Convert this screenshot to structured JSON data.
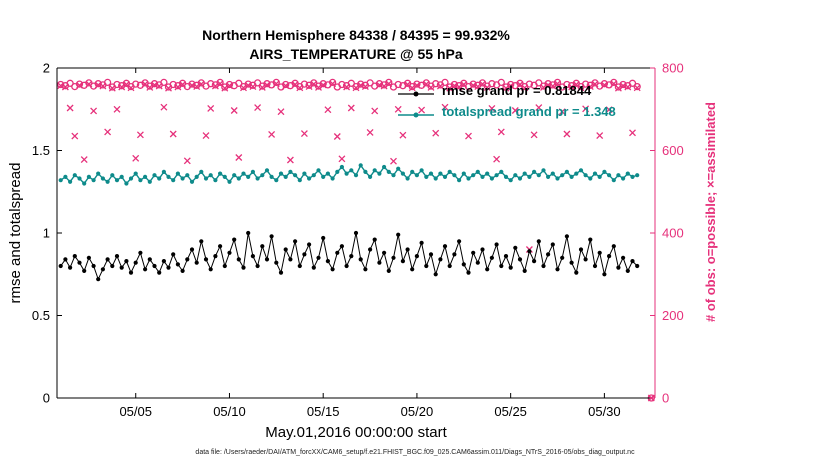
{
  "caption": "data file: /Users/raeder/DAI/ATM_forcXX/CAM6_setup/f.e21.FHIST_BGC.f09_025.CAM6assim.011/Diags_NTrS_2016-05/obs_diag_output.nc",
  "colors": {
    "pink": "#e6317b",
    "teal": "#0e8b8b",
    "black": "#000000"
  },
  "chart_data": {
    "type": "line+scatter",
    "title": "Northern Hemisphere 84338 / 84395 = 99.932%",
    "subtitle": "AIRS_TEMPERATURE @ 55 hPa",
    "xlabel": "May.01,2016 00:00:00 start",
    "ylabel_left": "rmse and totalspread",
    "ylabel_right": "# of obs: o=possible; ×=assimilated",
    "xlim": [
      0.8,
      32.7
    ],
    "ylim_left": [
      0,
      2
    ],
    "ylim_right": [
      0,
      800
    ],
    "grid": false,
    "legend_position": "top-center-inside",
    "x_ticks": [
      {
        "v": 5,
        "label": "05/05"
      },
      {
        "v": 10,
        "label": "05/10"
      },
      {
        "v": 15,
        "label": "05/15"
      },
      {
        "v": 20,
        "label": "05/20"
      },
      {
        "v": 25,
        "label": "05/25"
      },
      {
        "v": 30,
        "label": "05/30"
      }
    ],
    "y_ticks_left": [
      {
        "v": 0,
        "label": "0"
      },
      {
        "v": 0.5,
        "label": "0.5"
      },
      {
        "v": 1,
        "label": "1"
      },
      {
        "v": 1.5,
        "label": "1.5"
      },
      {
        "v": 2,
        "label": "2"
      }
    ],
    "y_ticks_right": [
      {
        "v": 0,
        "label": "0"
      },
      {
        "v": 200,
        "label": "200"
      },
      {
        "v": 400,
        "label": "400"
      },
      {
        "v": 600,
        "label": "600"
      },
      {
        "v": 800,
        "label": "800"
      }
    ],
    "x_start": 1.0,
    "x_step": 0.25,
    "n": 124,
    "series": [
      {
        "name": "rmse grand pr = 0.81844",
        "color": "#000000",
        "marker": "dot",
        "axis": "left",
        "values": [
          0.8,
          0.84,
          0.79,
          0.86,
          0.82,
          0.77,
          0.85,
          0.8,
          0.72,
          0.78,
          0.84,
          0.8,
          0.86,
          0.79,
          0.83,
          0.76,
          0.82,
          0.88,
          0.78,
          0.84,
          0.8,
          0.76,
          0.83,
          0.79,
          0.87,
          0.81,
          0.77,
          0.84,
          0.9,
          0.82,
          0.95,
          0.84,
          0.78,
          0.86,
          0.92,
          0.8,
          0.88,
          0.96,
          0.84,
          0.79,
          1.0,
          0.86,
          0.8,
          0.92,
          0.84,
          0.98,
          0.82,
          0.76,
          0.9,
          0.84,
          0.95,
          0.8,
          0.87,
          0.93,
          0.79,
          0.85,
          0.97,
          0.83,
          0.78,
          0.88,
          0.92,
          0.8,
          0.86,
          1.0,
          0.84,
          0.78,
          0.9,
          0.96,
          0.82,
          0.88,
          0.77,
          0.85,
          0.99,
          0.83,
          0.9,
          0.78,
          0.86,
          0.94,
          0.8,
          0.87,
          0.75,
          0.84,
          0.92,
          0.8,
          0.87,
          0.95,
          0.81,
          0.76,
          0.88,
          0.82,
          0.9,
          0.78,
          0.85,
          0.93,
          0.8,
          0.86,
          0.79,
          0.91,
          0.84,
          0.77,
          0.89,
          0.83,
          0.95,
          0.8,
          0.87,
          0.93,
          0.78,
          0.85,
          0.98,
          0.82,
          0.76,
          0.9,
          0.84,
          0.96,
          0.8,
          0.88,
          0.75,
          0.86,
          0.92,
          0.79,
          0.85,
          0.77,
          0.83,
          0.8
        ]
      },
      {
        "name": "totalspread grand pr = 1.348",
        "color": "#0e8b8b",
        "marker": "dot",
        "axis": "left",
        "values": [
          1.32,
          1.34,
          1.31,
          1.35,
          1.33,
          1.3,
          1.34,
          1.32,
          1.36,
          1.33,
          1.31,
          1.35,
          1.32,
          1.34,
          1.3,
          1.33,
          1.36,
          1.32,
          1.34,
          1.31,
          1.35,
          1.33,
          1.37,
          1.34,
          1.32,
          1.36,
          1.33,
          1.35,
          1.31,
          1.34,
          1.37,
          1.33,
          1.35,
          1.32,
          1.36,
          1.34,
          1.31,
          1.35,
          1.33,
          1.36,
          1.34,
          1.37,
          1.33,
          1.35,
          1.38,
          1.34,
          1.32,
          1.36,
          1.34,
          1.37,
          1.35,
          1.32,
          1.36,
          1.33,
          1.35,
          1.38,
          1.34,
          1.36,
          1.33,
          1.37,
          1.4,
          1.36,
          1.38,
          1.35,
          1.41,
          1.37,
          1.34,
          1.38,
          1.36,
          1.4,
          1.37,
          1.35,
          1.39,
          1.36,
          1.33,
          1.37,
          1.35,
          1.38,
          1.34,
          1.36,
          1.33,
          1.36,
          1.34,
          1.37,
          1.35,
          1.32,
          1.36,
          1.33,
          1.35,
          1.37,
          1.34,
          1.36,
          1.33,
          1.35,
          1.37,
          1.34,
          1.32,
          1.35,
          1.33,
          1.36,
          1.34,
          1.37,
          1.35,
          1.38,
          1.34,
          1.36,
          1.33,
          1.35,
          1.37,
          1.34,
          1.36,
          1.38,
          1.35,
          1.33,
          1.36,
          1.34,
          1.37,
          1.35,
          1.32,
          1.35,
          1.33,
          1.36,
          1.34,
          1.35
        ]
      }
    ],
    "obs_series": {
      "color": "#e6317b",
      "axis": "right",
      "possible_marker": "o",
      "assimilated_marker": "×",
      "possible": [
        760,
        757,
        763,
        755,
        761,
        758,
        764,
        756,
        762,
        759,
        765,
        754,
        760,
        757,
        763,
        755,
        761,
        758,
        764,
        756,
        762,
        759,
        765,
        754,
        760,
        757,
        763,
        755,
        761,
        758,
        764,
        756,
        762,
        759,
        765,
        754,
        760,
        757,
        763,
        755,
        761,
        758,
        764,
        756,
        762,
        759,
        765,
        754,
        760,
        757,
        763,
        755,
        761,
        758,
        764,
        756,
        762,
        759,
        765,
        754,
        760,
        757,
        763,
        755,
        761,
        758,
        764,
        756,
        762,
        759,
        765,
        754,
        760,
        757,
        763,
        755,
        761,
        758,
        764,
        756,
        762,
        759,
        765,
        754,
        760,
        757,
        763,
        755,
        761,
        758,
        764,
        756,
        762,
        759,
        765,
        754,
        760,
        757,
        763,
        755,
        761,
        758,
        764,
        756,
        762,
        759,
        765,
        754,
        760,
        757,
        763,
        755,
        761,
        758,
        764,
        756,
        762,
        759,
        765,
        754,
        760,
        757,
        763,
        755
      ],
      "assimilated": [
        757,
        754,
        703,
        635,
        758,
        578,
        761,
        696,
        759,
        756,
        645,
        751,
        700,
        754,
        760,
        752,
        581,
        638,
        761,
        753,
        759,
        756,
        705,
        751,
        640,
        754,
        760,
        575,
        758,
        755,
        761,
        636,
        702,
        756,
        762,
        751,
        757,
        697,
        583,
        752,
        758,
        755,
        704,
        753,
        759,
        639,
        762,
        694,
        757,
        577,
        760,
        752,
        641,
        755,
        761,
        753,
        759,
        699,
        762,
        634,
        580,
        754,
        703,
        752,
        758,
        755,
        644,
        696,
        759,
        756,
        762,
        574,
        700,
        637,
        760,
        752,
        758,
        698,
        761,
        753,
        642,
        756,
        705,
        751,
        757,
        754,
        760,
        635,
        758,
        755,
        761,
        753,
        702,
        579,
        645,
        751,
        757,
        697,
        760,
        752,
        360,
        638,
        704,
        753,
        759,
        756,
        762,
        694,
        640,
        754,
        760,
        752,
        701,
        755,
        761,
        636,
        759,
        699,
        762,
        751,
        757,
        754,
        643,
        752
      ],
      "extra_point": {
        "x_day": 32.5,
        "possible": 0,
        "assimilated": 0
      }
    }
  }
}
